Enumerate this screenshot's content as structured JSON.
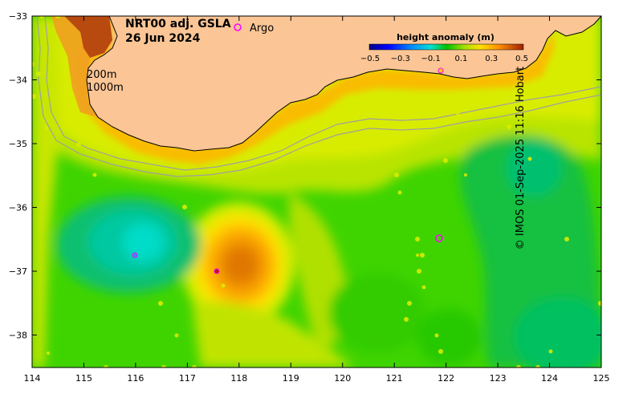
{
  "title": {
    "line1": "NRT00 adj. GSLA",
    "line2": "26 Jun 2024"
  },
  "legend": {
    "argo_symbol": "o",
    "argo_label": "Argo",
    "colorbar_title": "height anomaly (m)",
    "colorbar_ticks": [
      "−0.5",
      "−0.3",
      "−0.1",
      "0.1",
      "0.3",
      "0.5"
    ],
    "colorbar_colors": [
      "#00008b",
      "#0000ff",
      "#0080ff",
      "#00c0ff",
      "#00e5c0",
      "#00c000",
      "#7ed000",
      "#d7ea00",
      "#ffd000",
      "#ff9000",
      "#e06000",
      "#a02000"
    ]
  },
  "contours": {
    "c200": "200m",
    "c1000": "1000m"
  },
  "axes": {
    "x_ticks": [
      "114",
      "115",
      "116",
      "117",
      "118",
      "119",
      "120",
      "121",
      "122",
      "123",
      "124",
      "125"
    ],
    "y_ticks": [
      "−33",
      "−34",
      "−35",
      "−36",
      "−37",
      "−38"
    ]
  },
  "credit": "© IMOS 01-Sep-2025 11:16 Hobart",
  "colors": {
    "land": "#fbc596",
    "coastline": "#000000",
    "bathymetry_contours": "#a0a0a0",
    "argo_marker": "#ff00ff"
  }
}
